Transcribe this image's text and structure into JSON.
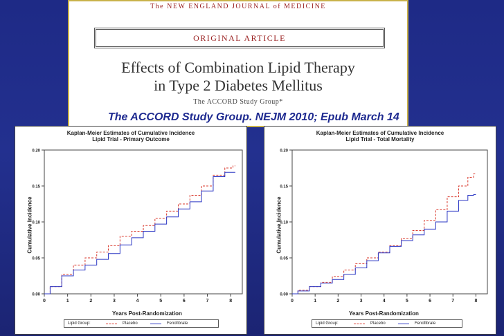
{
  "article": {
    "journal": "The NEW ENGLAND JOURNAL of MEDICINE",
    "section": "ORIGINAL ARTICLE",
    "title_line1": "Effects of Combination Lipid Therapy",
    "title_line2": "in Type 2 Diabetes Mellitus",
    "authors": "The ACCORD Study Group*"
  },
  "citation": "The ACCORD Study Group. NEJM 2010; Epub March 14",
  "colors": {
    "placebo": "#d9382c",
    "fenofibrate": "#2a36c4",
    "background": "#1e2a86"
  },
  "chart_data": [
    {
      "type": "line",
      "title": "Kaplan-Meier Estimates of Cumulative Incidence",
      "subtitle": "Lipid Trial - Primary Outcome",
      "xlabel": "Years Post-Randomization",
      "ylabel": "Cumulative Incidence",
      "xlim": [
        0,
        8.5
      ],
      "ylim": [
        0,
        0.2
      ],
      "x_ticks": [
        "0",
        "1",
        "2",
        "3",
        "4",
        "5",
        "6",
        "7",
        "8"
      ],
      "y_ticks": [
        "0.00",
        "0.05",
        "0.10",
        "0.15",
        "0.20"
      ],
      "legend_title": "Lipid Group:",
      "legend_placement": "bottom",
      "series": [
        {
          "name": "Placebo",
          "style": "dashed",
          "color": "#d9382c",
          "x": [
            0,
            0.5,
            1.0,
            1.5,
            2.0,
            2.5,
            3.0,
            3.5,
            4.0,
            4.5,
            5.0,
            5.5,
            6.0,
            6.5,
            7.0,
            7.5,
            8.0,
            8.2
          ],
          "y": [
            0,
            0.01,
            0.027,
            0.04,
            0.05,
            0.058,
            0.067,
            0.08,
            0.087,
            0.095,
            0.105,
            0.115,
            0.125,
            0.137,
            0.15,
            0.165,
            0.175,
            0.178
          ]
        },
        {
          "name": "Fenofibrate",
          "style": "solid",
          "color": "#2a36c4",
          "x": [
            0,
            0.5,
            1.0,
            1.5,
            2.0,
            2.5,
            3.0,
            3.5,
            4.0,
            4.5,
            5.0,
            5.5,
            6.0,
            6.5,
            7.0,
            7.5,
            8.0,
            8.2
          ],
          "y": [
            0,
            0.01,
            0.025,
            0.033,
            0.04,
            0.048,
            0.056,
            0.068,
            0.078,
            0.087,
            0.097,
            0.107,
            0.118,
            0.128,
            0.143,
            0.163,
            0.169,
            0.169
          ]
        }
      ]
    },
    {
      "type": "line",
      "title": "Kaplan-Meier Estimates of Cumulative Incidence",
      "subtitle": "Lipid Trial - Total Mortality",
      "xlabel": "Years Post-Randomization",
      "ylabel": "Cumulative Incidence",
      "xlim": [
        0,
        8.5
      ],
      "ylim": [
        0,
        0.2
      ],
      "x_ticks": [
        "0",
        "1",
        "2",
        "3",
        "4",
        "5",
        "6",
        "7",
        "8"
      ],
      "y_ticks": [
        "0.00",
        "0.05",
        "0.10",
        "0.15",
        "0.20"
      ],
      "legend_title": "Lipid Group:",
      "legend_placement": "bottom",
      "series": [
        {
          "name": "Placebo",
          "style": "dashed",
          "color": "#d9382c",
          "x": [
            0,
            0.5,
            1.0,
            1.5,
            2.0,
            2.5,
            3.0,
            3.5,
            4.0,
            4.5,
            5.0,
            5.5,
            6.0,
            6.5,
            7.0,
            7.5,
            7.8,
            8.0
          ],
          "y": [
            0,
            0.005,
            0.01,
            0.016,
            0.024,
            0.033,
            0.042,
            0.05,
            0.058,
            0.067,
            0.077,
            0.088,
            0.102,
            0.117,
            0.135,
            0.15,
            0.162,
            0.167
          ]
        },
        {
          "name": "Fenofibrate",
          "style": "solid",
          "color": "#2a36c4",
          "x": [
            0,
            0.5,
            1.0,
            1.5,
            2.0,
            2.5,
            3.0,
            3.5,
            4.0,
            4.5,
            5.0,
            5.5,
            6.0,
            6.5,
            7.0,
            7.5,
            7.8,
            8.0
          ],
          "y": [
            0,
            0.004,
            0.01,
            0.015,
            0.02,
            0.027,
            0.036,
            0.046,
            0.057,
            0.066,
            0.074,
            0.082,
            0.09,
            0.1,
            0.115,
            0.13,
            0.137,
            0.138
          ]
        }
      ]
    }
  ]
}
